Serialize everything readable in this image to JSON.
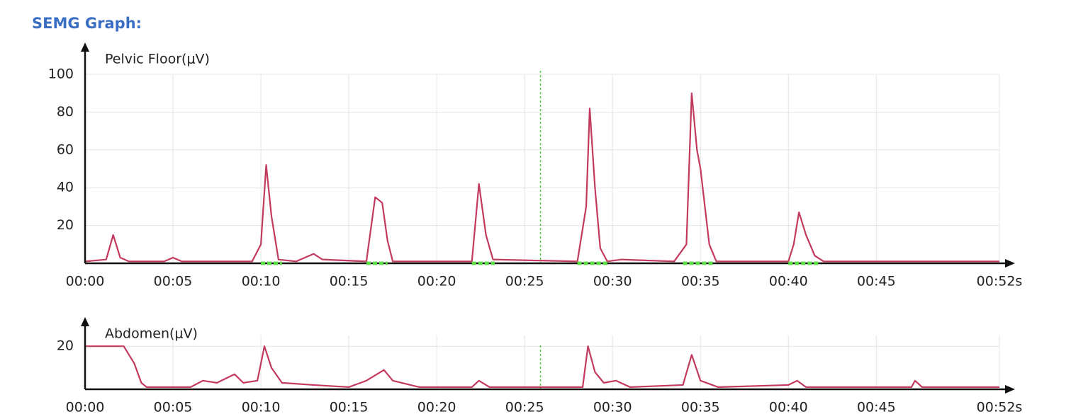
{
  "title": "SEMG Graph:",
  "chart_data": [
    {
      "type": "line",
      "y_label": "Pelvic Floor(μV)",
      "color": "#c43a5e",
      "grid": true,
      "xlim": [
        0,
        52
      ],
      "ylim": [
        0,
        100
      ],
      "xticks": [
        {
          "value": 0,
          "label": "00:00"
        },
        {
          "value": 5,
          "label": "00:05"
        },
        {
          "value": 10,
          "label": "00:10"
        },
        {
          "value": 15,
          "label": "00:15"
        },
        {
          "value": 20,
          "label": "00:20"
        },
        {
          "value": 25,
          "label": "00:25"
        },
        {
          "value": 30,
          "label": "00:30"
        },
        {
          "value": 35,
          "label": "00:35"
        },
        {
          "value": 40,
          "label": "00:40"
        },
        {
          "value": 45,
          "label": "00:45"
        },
        {
          "value": 52,
          "label": "00:52s"
        }
      ],
      "yticks": [
        20,
        40,
        60,
        80,
        100
      ],
      "cursor_x": 25.9,
      "cursor_color": "#55c94a",
      "highlight_ranges": [
        [
          10,
          11.2
        ],
        [
          16,
          17.2
        ],
        [
          22,
          23.3
        ],
        [
          28,
          29.8
        ],
        [
          34,
          35.8
        ],
        [
          40,
          41.8
        ]
      ],
      "highlight_color": "#5fe04a",
      "x": [
        0,
        1.2,
        1.6,
        2.0,
        2.5,
        4.5,
        5.0,
        5.5,
        9.5,
        10.0,
        10.3,
        10.6,
        11.0,
        12.0,
        13.0,
        13.5,
        16.0,
        16.5,
        16.9,
        17.2,
        17.5,
        22.0,
        22.4,
        22.8,
        23.2,
        28.0,
        28.5,
        28.7,
        29.0,
        29.3,
        29.7,
        30.5,
        33.5,
        34.2,
        34.5,
        34.8,
        35.0,
        35.5,
        35.9,
        40.0,
        40.3,
        40.6,
        41.0,
        41.5,
        42.0,
        52
      ],
      "values": [
        1,
        2,
        15,
        3,
        1,
        1,
        3,
        1,
        1,
        10,
        52,
        25,
        2,
        1,
        5,
        2,
        1,
        35,
        32,
        12,
        1,
        1,
        42,
        15,
        2,
        1,
        30,
        82,
        40,
        8,
        1,
        2,
        1,
        10,
        90,
        60,
        50,
        10,
        1,
        1,
        10,
        27,
        15,
        4,
        1,
        1
      ]
    },
    {
      "type": "line",
      "y_label": "Abdomen(μV)",
      "color": "#c43a5e",
      "grid": true,
      "xlim": [
        0,
        52
      ],
      "ylim": [
        0,
        25
      ],
      "xticks": [
        {
          "value": 0,
          "label": "00:00"
        },
        {
          "value": 5,
          "label": "00:05"
        },
        {
          "value": 10,
          "label": "00:10"
        },
        {
          "value": 15,
          "label": "00:15"
        },
        {
          "value": 20,
          "label": "00:20"
        },
        {
          "value": 25,
          "label": "00:25"
        },
        {
          "value": 30,
          "label": "00:30"
        },
        {
          "value": 35,
          "label": "00:35"
        },
        {
          "value": 40,
          "label": "00:40"
        },
        {
          "value": 45,
          "label": "00:45"
        },
        {
          "value": 52,
          "label": "00:52s"
        }
      ],
      "yticks": [
        20
      ],
      "cursor_x": 25.9,
      "cursor_color": "#55c94a",
      "x": [
        0,
        2.2,
        2.8,
        3.2,
        3.5,
        6.0,
        6.7,
        7.5,
        8.5,
        9.0,
        9.8,
        10.2,
        10.6,
        11.2,
        13,
        15,
        16,
        17,
        17.5,
        19,
        22,
        22.4,
        23,
        27.5,
        28.3,
        28.6,
        29,
        29.5,
        30.2,
        31,
        34,
        34.5,
        35,
        36,
        40,
        40.5,
        41,
        47,
        47.2,
        47.6,
        52
      ],
      "values": [
        20,
        20,
        12,
        3,
        1,
        1,
        4,
        3,
        7,
        3,
        4,
        20,
        10,
        3,
        2,
        1,
        4,
        9,
        4,
        1,
        1,
        4,
        1,
        1,
        1,
        20,
        8,
        3,
        4,
        1,
        2,
        16,
        4,
        1,
        2,
        4,
        1,
        1,
        4,
        1,
        1
      ]
    }
  ]
}
